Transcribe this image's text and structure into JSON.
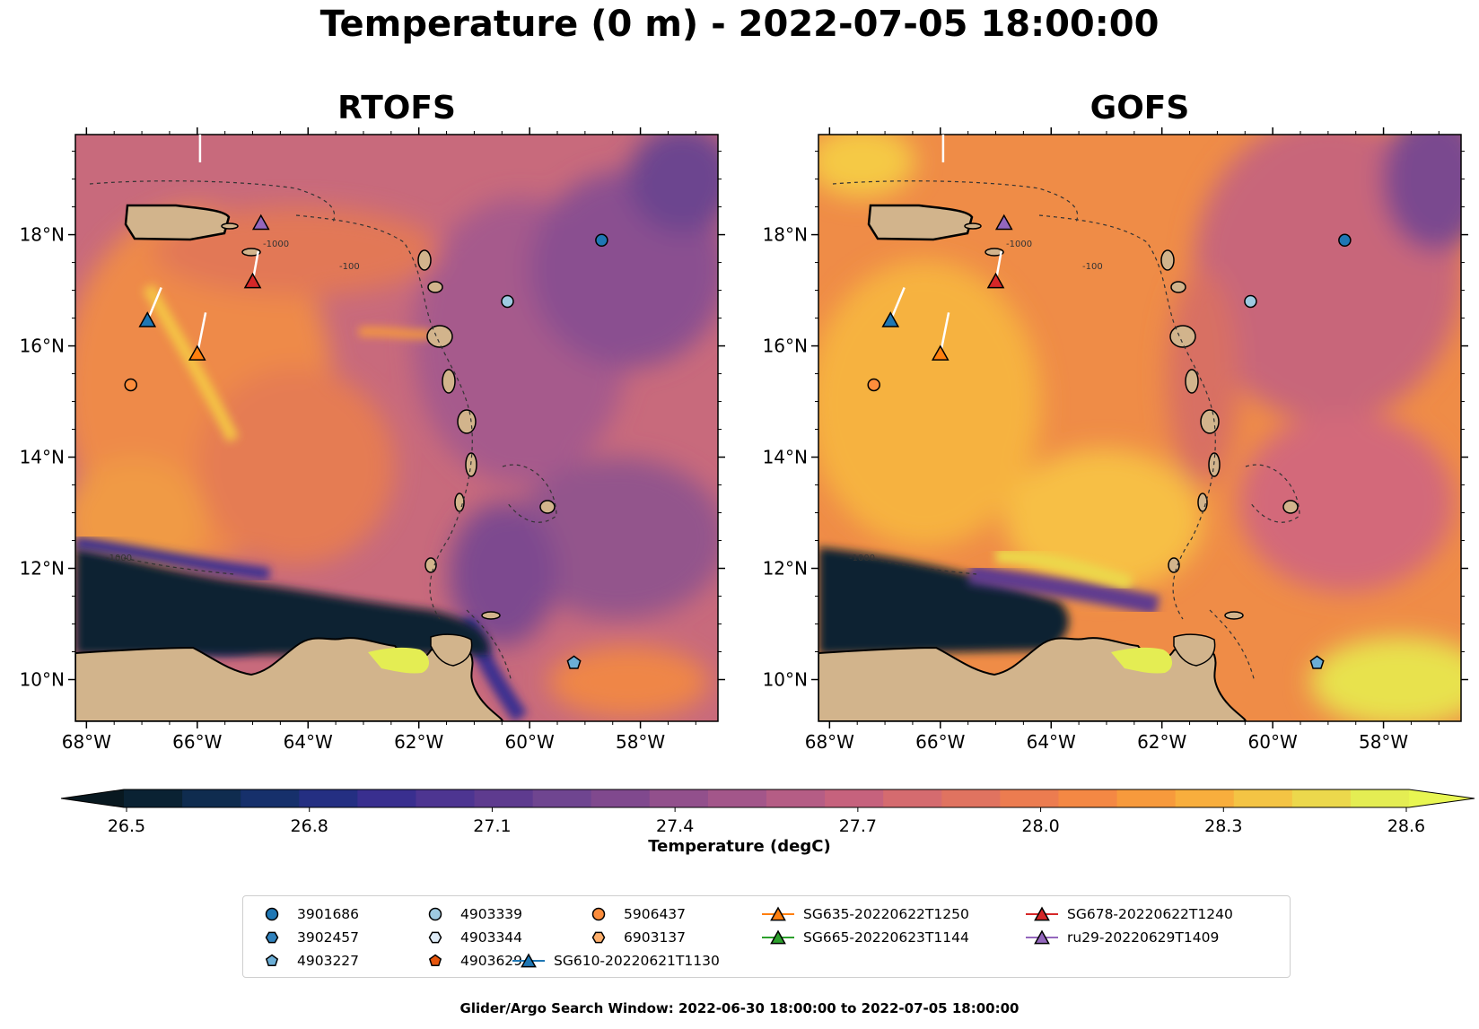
{
  "title": "Temperature (0 m) - 2022-07-05 18:00:00",
  "panels": [
    {
      "name": "RTOFS"
    },
    {
      "name": "GOFS"
    }
  ],
  "axes": {
    "lon_ticks": [
      "68°W",
      "66°W",
      "64°W",
      "62°W",
      "60°W",
      "58°W"
    ],
    "lat_ticks": [
      "18°N",
      "16°N",
      "14°N",
      "12°N",
      "10°N"
    ],
    "lon_values": [
      -68,
      -66,
      -64,
      -62,
      -60,
      -58
    ],
    "lat_values": [
      18,
      16,
      14,
      12,
      10
    ],
    "lon_range": [
      -68.2,
      -56.6
    ],
    "lat_range": [
      9.25,
      19.8
    ]
  },
  "colorbar": {
    "label": "Temperature (degC)",
    "ticks": [
      "26.5",
      "26.8",
      "27.1",
      "27.4",
      "27.7",
      "28.0",
      "28.3",
      "28.6"
    ],
    "min": 26.5,
    "max": 28.6,
    "colors": [
      "#0a2233",
      "#0f2c4f",
      "#16306b",
      "#242f82",
      "#392f8f",
      "#4d3591",
      "#5e3b8f",
      "#6f4590",
      "#80498e",
      "#92508c",
      "#a3568a",
      "#b55d85",
      "#c6627d",
      "#d56b6f",
      "#e07360",
      "#ec7c50",
      "#f48844",
      "#f79a3c",
      "#f8ae3d",
      "#f4c444",
      "#ecd84c",
      "#e4ed53"
    ]
  },
  "colors": {
    "land": "#d2b48c",
    "lake": "#98b7d3",
    "track": "#ffffff",
    "bathy_contour": "#333333"
  },
  "bathymetry_labels": [
    "-1000",
    "-100"
  ],
  "floats": [
    {
      "id": "3901686",
      "marker": "circle",
      "color": "#1f77b4",
      "lon": -58.7,
      "lat": 17.9
    },
    {
      "id": "4903339",
      "marker": "circle",
      "color": "#9ecae1",
      "lon": -60.4,
      "lat": 16.8
    },
    {
      "id": "5906437",
      "marker": "circle",
      "color": "#fd8d3c",
      "lon": -67.2,
      "lat": 15.3
    },
    {
      "id": "4903227",
      "marker": "pentagon",
      "color": "#6baed6",
      "lon": -59.2,
      "lat": 10.3
    }
  ],
  "gliders": [
    {
      "id": "SG610-20220621T1130",
      "color": "#1f77b4",
      "lon": -66.9,
      "lat": 16.45,
      "track": [
        [
          -66.9,
          16.45
        ],
        [
          -66.65,
          17.05
        ]
      ]
    },
    {
      "id": "SG635-20220622T1250",
      "color": "#ff7f0e",
      "lon": -66.0,
      "lat": 15.85,
      "track": [
        [
          -66.0,
          15.85
        ],
        [
          -65.85,
          16.6
        ]
      ]
    },
    {
      "id": "SG678-20220622T1240",
      "color": "#d62728",
      "lon": -65.0,
      "lat": 17.15,
      "track": [
        [
          -65.0,
          17.15
        ],
        [
          -64.9,
          17.7
        ]
      ]
    },
    {
      "id": "ru29-20220629T1409",
      "color": "#9467bd",
      "lon": -64.85,
      "lat": 18.2,
      "track": [
        [
          -65.95,
          19.3
        ],
        [
          -65.95,
          19.8
        ]
      ]
    }
  ],
  "legend": [
    {
      "label": "3901686",
      "marker": "circle",
      "color": "#1f77b4",
      "line": false
    },
    {
      "label": "3902457",
      "marker": "hexagon",
      "color": "#3182bd",
      "line": false
    },
    {
      "label": "4903227",
      "marker": "pentagon",
      "color": "#6baed6",
      "line": false
    },
    {
      "label": "4903339",
      "marker": "circle",
      "color": "#9ecae1",
      "line": false
    },
    {
      "label": "4903344",
      "marker": "hexagon",
      "color": "#deebf7",
      "line": false
    },
    {
      "label": "4903629",
      "marker": "pentagon",
      "color": "#e6550d",
      "line": false
    },
    {
      "label": "5906437",
      "marker": "circle",
      "color": "#fd8d3c",
      "line": false
    },
    {
      "label": "6903137",
      "marker": "hexagon",
      "color": "#fdae6b",
      "line": false
    },
    {
      "label": "SG610-20220621T1130",
      "marker": "triangle",
      "color": "#1f77b4",
      "line": true
    },
    {
      "label": "SG635-20220622T1250",
      "marker": "triangle",
      "color": "#ff7f0e",
      "line": true
    },
    {
      "label": "SG665-20220623T1144",
      "marker": "triangle",
      "color": "#2ca02c",
      "line": true
    },
    {
      "label": "SG678-20220622T1240",
      "marker": "triangle",
      "color": "#d62728",
      "line": true
    },
    {
      "label": "ru29-20220629T1409",
      "marker": "triangle",
      "color": "#9467bd",
      "line": true
    }
  ],
  "search_window": "Glider/Argo Search Window: 2022-06-30 18:00:00 to 2022-07-05 18:00:00"
}
